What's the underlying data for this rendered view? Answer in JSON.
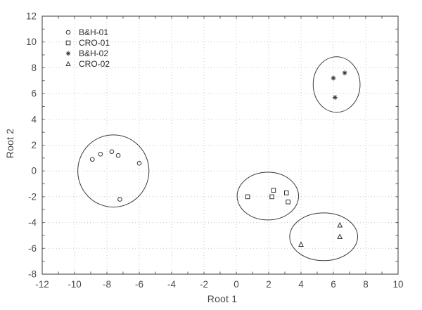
{
  "chart_data": {
    "type": "scatter",
    "title": "",
    "xlabel": "Root 1",
    "ylabel": "Root 2",
    "xlim": [
      -12,
      10
    ],
    "ylim": [
      -8,
      12
    ],
    "x_ticks": [
      -12,
      -10,
      -8,
      -6,
      -4,
      -2,
      0,
      2,
      4,
      6,
      8,
      10
    ],
    "y_ticks": [
      -8,
      -6,
      -4,
      -2,
      0,
      2,
      4,
      6,
      8,
      10,
      12
    ],
    "minor_tick_step": 1,
    "grid": "dotted gridlines at every labeled tick (step 2), both axes",
    "legend_position": "inside top-left, no border",
    "series": [
      {
        "name": "B&H-01",
        "marker": "circle",
        "points": [
          [
            -8.9,
            0.9
          ],
          [
            -8.4,
            1.3
          ],
          [
            -7.7,
            1.5
          ],
          [
            -7.3,
            1.2
          ],
          [
            -6.0,
            0.6
          ],
          [
            -7.2,
            -2.2
          ]
        ]
      },
      {
        "name": "CRO-01",
        "marker": "square",
        "points": [
          [
            0.7,
            -2.0
          ],
          [
            2.2,
            -2.0
          ],
          [
            2.3,
            -1.5
          ],
          [
            3.1,
            -1.7
          ],
          [
            3.2,
            -2.4
          ]
        ]
      },
      {
        "name": "B&H-02",
        "marker": "asterisk",
        "points": [
          [
            6.7,
            7.6
          ],
          [
            6.0,
            7.2
          ],
          [
            6.1,
            5.7
          ]
        ]
      },
      {
        "name": "CRO-02",
        "marker": "triangle",
        "points": [
          [
            6.4,
            -4.2
          ],
          [
            6.4,
            -5.1
          ],
          [
            4.0,
            -5.7
          ]
        ]
      }
    ],
    "cluster_ellipses": [
      {
        "series": "B&H-01",
        "cx": -7.6,
        "cy": 0.0,
        "rx": 2.2,
        "ry": 2.8
      },
      {
        "series": "CRO-01",
        "cx": 1.95,
        "cy": -1.95,
        "rx": 1.9,
        "ry": 1.85
      },
      {
        "series": "B&H-02",
        "cx": 6.2,
        "cy": 6.7,
        "rx": 1.45,
        "ry": 2.15
      },
      {
        "series": "CRO-02",
        "cx": 5.4,
        "cy": -5.1,
        "rx": 2.1,
        "ry": 1.85
      }
    ],
    "colors": {
      "background": "#ffffff",
      "frame": "#595959",
      "grid": "#c9c9c9",
      "tick_text": "#4a4a4a",
      "axis_title_text": "#474747",
      "legend_text": "#2a2a2a",
      "marker": "#333333",
      "ellipse": "#3a3a3a"
    }
  }
}
